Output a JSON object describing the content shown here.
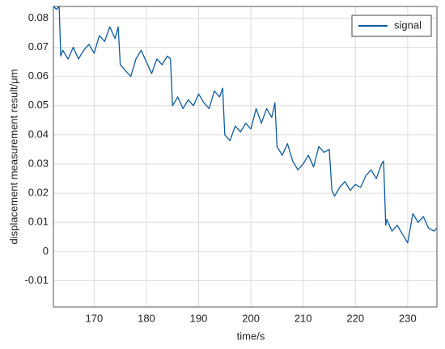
{
  "chart_data": {
    "type": "line",
    "xlabel": "time/s",
    "ylabel": "displacement measurement result/μm",
    "x": [
      162.2,
      162.8,
      163.3,
      163.6,
      164,
      165,
      166,
      167,
      168,
      169,
      170,
      171,
      172,
      173,
      174,
      174.6,
      175,
      176,
      177,
      178,
      179,
      180,
      181,
      182,
      183,
      184,
      184.6,
      185,
      186,
      187,
      188,
      189,
      190,
      191,
      192,
      193,
      194,
      194.6,
      195,
      196,
      197,
      198,
      199,
      200,
      201,
      202,
      203,
      204,
      204.6,
      205,
      206,
      207,
      208,
      209,
      210,
      211,
      212,
      213,
      214,
      215,
      215.5,
      216,
      217,
      218,
      219,
      220,
      221,
      222,
      223,
      224,
      225,
      225.4,
      225.8,
      226,
      227,
      228,
      229,
      230,
      231,
      232,
      233,
      234,
      235,
      235.6
    ],
    "series": [
      {
        "name": "signal",
        "color": "#0b5ba6",
        "values": [
          0.084,
          0.083,
          0.084,
          0.067,
          0.069,
          0.066,
          0.07,
          0.066,
          0.069,
          0.071,
          0.068,
          0.074,
          0.072,
          0.077,
          0.073,
          0.077,
          0.064,
          0.062,
          0.06,
          0.066,
          0.069,
          0.065,
          0.061,
          0.066,
          0.064,
          0.067,
          0.066,
          0.05,
          0.053,
          0.049,
          0.052,
          0.05,
          0.054,
          0.051,
          0.049,
          0.055,
          0.053,
          0.056,
          0.04,
          0.038,
          0.043,
          0.041,
          0.044,
          0.042,
          0.049,
          0.044,
          0.049,
          0.046,
          0.051,
          0.036,
          0.033,
          0.037,
          0.031,
          0.028,
          0.03,
          0.033,
          0.029,
          0.036,
          0.034,
          0.035,
          0.021,
          0.019,
          0.022,
          0.024,
          0.021,
          0.023,
          0.022,
          0.026,
          0.028,
          0.025,
          0.03,
          0.031,
          0.009,
          0.011,
          0.007,
          0.009,
          0.006,
          0.003,
          0.013,
          0.01,
          0.012,
          0.008,
          0.007,
          0.008
        ]
      }
    ],
    "xlim": [
      162.2,
      235.6
    ],
    "ylim": [
      -0.019,
      0.084
    ],
    "xticks": [
      170,
      180,
      190,
      200,
      210,
      220,
      230
    ],
    "yticks": [
      -0.01,
      0,
      0.01,
      0.02,
      0.03,
      0.04,
      0.05,
      0.06,
      0.07,
      0.08
    ],
    "grid": true,
    "legend": "upper right"
  }
}
